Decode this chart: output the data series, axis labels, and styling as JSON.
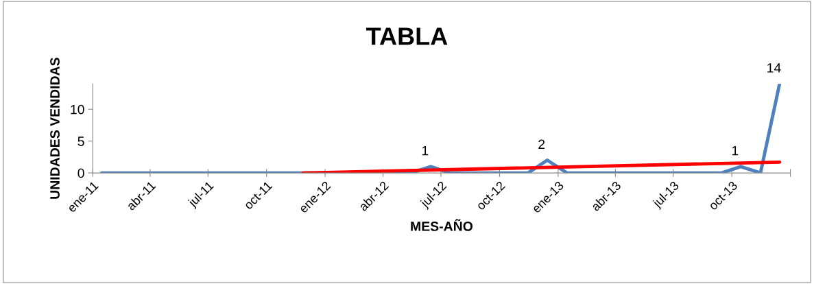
{
  "chart_data": {
    "type": "line",
    "title": "TABLA",
    "xlabel": "MES-AÑO",
    "ylabel": "UNIDADES VENDIDAS",
    "x": [
      "2011-01-15",
      "2011-02-15",
      "2011-03-15",
      "2011-04-15",
      "2011-05-15",
      "2011-06-15",
      "2011-07-15",
      "2011-08-15",
      "2011-09-15",
      "2011-10-15",
      "2011-11-15",
      "2011-12-15",
      "2012-01-15",
      "2012-02-15",
      "2012-03-15",
      "2012-04-15",
      "2012-05-15",
      "2012-06-15",
      "2012-07-15",
      "2012-08-15",
      "2012-09-15",
      "2012-10-15",
      "2012-11-15",
      "2012-12-15",
      "2013-01-15",
      "2013-02-15",
      "2013-03-15",
      "2013-04-15",
      "2013-05-15",
      "2013-06-15",
      "2013-07-15",
      "2013-08-15",
      "2013-09-15",
      "2013-10-15",
      "2013-11-15",
      "2013-12-15"
    ],
    "series": [
      {
        "color": "#4f81bd",
        "values": [
          0,
          0,
          0,
          0,
          0,
          0,
          0,
          0,
          0,
          0,
          0,
          0,
          0,
          0,
          0,
          0,
          0,
          1,
          0,
          0,
          0,
          0,
          0,
          2,
          0,
          0,
          0,
          0,
          0,
          0,
          0,
          0,
          0,
          1,
          0,
          14
        ],
        "value_labels": [
          null,
          null,
          null,
          null,
          null,
          null,
          null,
          null,
          null,
          null,
          null,
          null,
          null,
          null,
          null,
          null,
          null,
          "1",
          null,
          null,
          null,
          null,
          null,
          "2",
          null,
          null,
          null,
          null,
          null,
          null,
          null,
          null,
          null,
          "1",
          null,
          "14"
        ]
      },
      {
        "type": "line",
        "color": "#ff0000",
        "x": [
          "2011-11-27",
          "2013-12-15"
        ],
        "values": [
          0,
          1.7
        ]
      }
    ],
    "xlim": [
      "2011-01-01",
      "2014-01-01"
    ],
    "xticks": [
      {
        "value": "2011-01-01",
        "label": "ene-11"
      },
      {
        "value": "2011-04-01",
        "label": "abr-11"
      },
      {
        "value": "2011-07-01",
        "label": "jul-11"
      },
      {
        "value": "2011-10-01",
        "label": "oct-11"
      },
      {
        "value": "2012-01-01",
        "label": "ene-12"
      },
      {
        "value": "2012-04-01",
        "label": "abr-12"
      },
      {
        "value": "2012-07-01",
        "label": "jul-12"
      },
      {
        "value": "2012-10-01",
        "label": "oct-12"
      },
      {
        "value": "2013-01-01",
        "label": "ene-13"
      },
      {
        "value": "2013-04-01",
        "label": "abr-13"
      },
      {
        "value": "2013-07-01",
        "label": "jul-13"
      },
      {
        "value": "2013-10-01",
        "label": "oct-13"
      },
      {
        "value": "2014-01-01",
        "label": null
      }
    ],
    "ylim": [
      0,
      14
    ],
    "yticks": [
      0,
      5,
      10
    ],
    "grid": false,
    "marker": "none",
    "line_style": "solid"
  }
}
